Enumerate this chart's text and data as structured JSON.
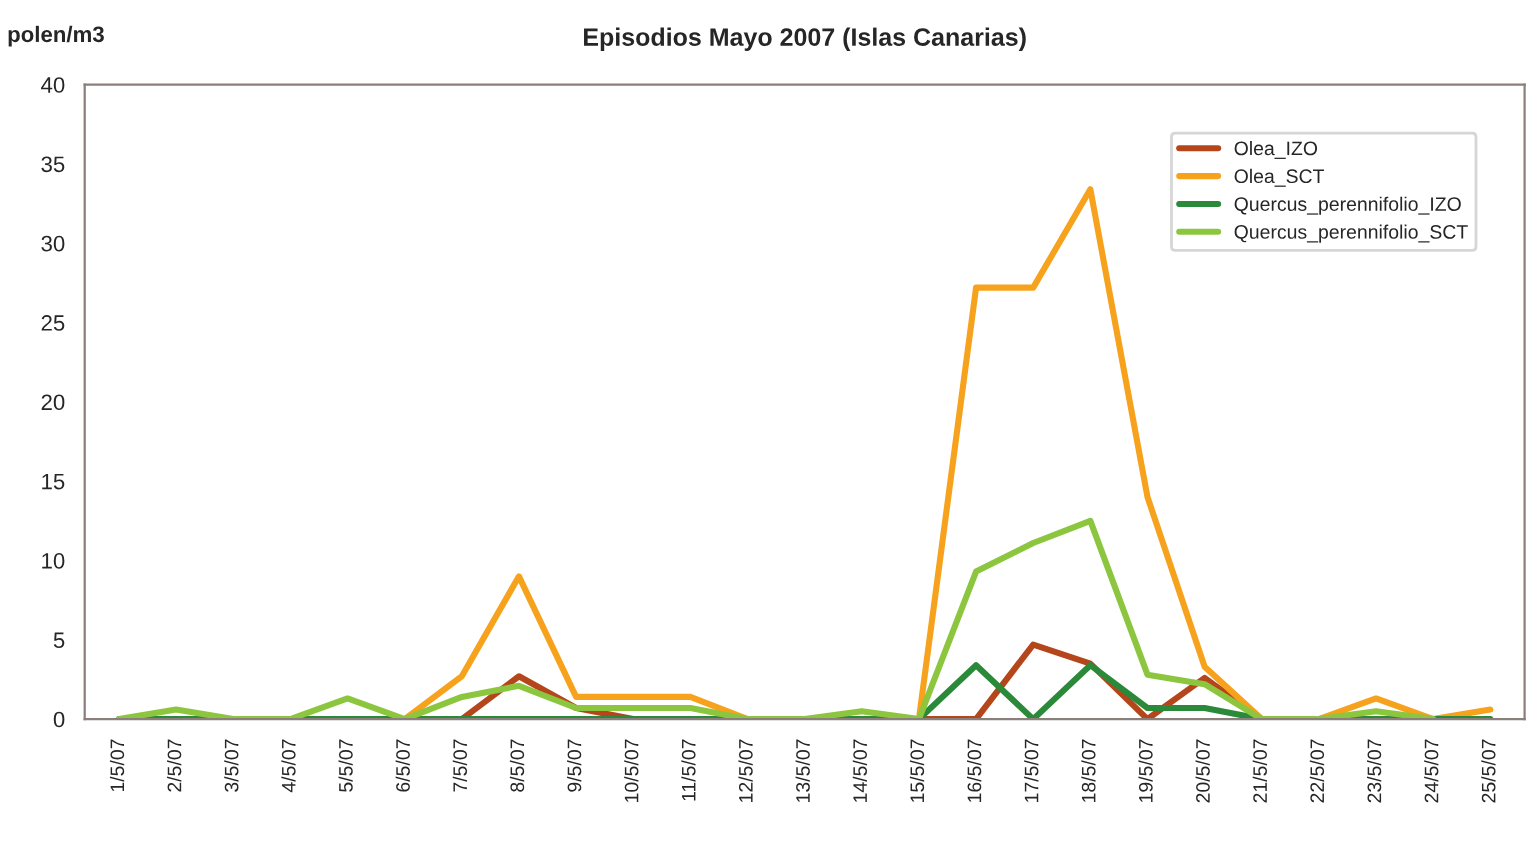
{
  "chart_data": {
    "type": "line",
    "title": "Episodios Mayo 2007 (Islas Canarias)",
    "ylabel": "polen/m3",
    "categories": [
      "1/5/07",
      "2/5/07",
      "3/5/07",
      "4/5/07",
      "5/5/07",
      "6/5/07",
      "7/5/07",
      "8/5/07",
      "9/5/07",
      "10/5/07",
      "11/5/07",
      "12/5/07",
      "13/5/07",
      "14/5/07",
      "15/5/07",
      "16/5/07",
      "17/5/07",
      "18/5/07",
      "19/5/07",
      "20/5/07",
      "21/5/07",
      "22/5/07",
      "23/5/07",
      "24/5/07",
      "25/5/07"
    ],
    "series": [
      {
        "name": "Olea_IZO",
        "color": "#b5461c",
        "values": [
          null,
          null,
          null,
          null,
          null,
          null,
          0,
          2.7,
          0.7,
          0,
          null,
          null,
          null,
          null,
          0,
          0,
          4.7,
          3.5,
          0,
          2.6,
          0,
          null,
          null,
          null,
          null
        ]
      },
      {
        "name": "Olea_SCT",
        "color": "#f7a21d",
        "values": [
          null,
          null,
          null,
          null,
          null,
          0,
          2.7,
          9,
          1.4,
          1.4,
          1.4,
          0,
          null,
          null,
          0,
          27.2,
          27.2,
          33.4,
          14,
          3.3,
          0,
          0,
          1.3,
          0,
          0.6
        ]
      },
      {
        "name": "Quercus_perennifolio_IZO",
        "color": "#2a8a3a",
        "values": [
          0,
          0,
          0,
          0,
          0,
          0,
          0,
          0,
          0,
          0,
          0,
          0,
          0,
          0,
          0,
          3.4,
          0,
          3.4,
          0.7,
          0.7,
          0,
          0,
          0,
          0,
          0
        ]
      },
      {
        "name": "Quercus_perennifolio_SCT",
        "color": "#8cc63f",
        "values": [
          0,
          0.6,
          0,
          0,
          1.3,
          0,
          1.4,
          2.1,
          0.7,
          0.7,
          0.7,
          0,
          0,
          0.5,
          0,
          9.3,
          11.1,
          12.5,
          2.8,
          2.2,
          0,
          0,
          0.5,
          0,
          null
        ]
      }
    ],
    "ylim": [
      0,
      40
    ],
    "yticks": [
      0,
      5,
      10,
      15,
      20,
      25,
      30,
      35,
      40
    ],
    "grid": false,
    "legend": "top right",
    "marker": "none",
    "line_style": "solid"
  }
}
